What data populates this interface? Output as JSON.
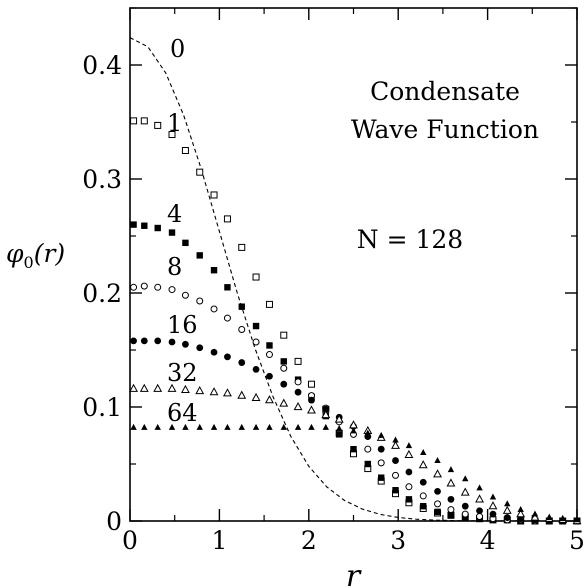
{
  "chart_data": {
    "type": "scatter",
    "xlabel": "r",
    "ylabel": "φ0(r)",
    "xlim": [
      0,
      5
    ],
    "ylim": [
      0,
      0.45
    ],
    "grid": false,
    "x_ticks": [
      0,
      1,
      2,
      3,
      4,
      5
    ],
    "x_tick_labels": [
      "0",
      "1",
      "2",
      "3",
      "4",
      "5"
    ],
    "y_ticks": [
      0,
      0.1,
      0.2,
      0.3,
      0.4
    ],
    "y_tick_labels": [
      "0",
      "0.1",
      "0.2",
      "0.3",
      "0.4"
    ],
    "annotations": [
      {
        "text": "Condensate",
        "position": "upper-right"
      },
      {
        "text": "Wave Function",
        "position": "upper-right"
      },
      {
        "text": "N = 128",
        "position": "right"
      }
    ],
    "series": [
      {
        "name": "0",
        "marker": "dashed-line",
        "x": [
          0,
          0.2,
          0.4,
          0.6,
          0.8,
          1.0,
          1.2,
          1.4,
          1.6,
          1.8,
          2.0,
          2.2,
          2.4,
          2.6,
          2.8,
          3.0,
          3.2,
          3.4,
          3.6,
          3.8,
          4.0,
          4.5,
          5.0
        ],
        "y": [
          0.424,
          0.416,
          0.393,
          0.356,
          0.308,
          0.254,
          0.2,
          0.151,
          0.109,
          0.074,
          0.048,
          0.03,
          0.018,
          0.0104,
          0.0058,
          0.0031,
          0.0016,
          0.0008,
          0.0004,
          0.0002,
          0.0001,
          0.0,
          0.0
        ]
      },
      {
        "name": "1",
        "marker": "open-square",
        "x": [
          0.04,
          0.16,
          0.31,
          0.47,
          0.62,
          0.78,
          0.94,
          1.09,
          1.25,
          1.41,
          1.56,
          1.72,
          1.88,
          2.03,
          2.19,
          2.34,
          2.5,
          2.66,
          2.81,
          2.97,
          3.12,
          3.28,
          3.44,
          3.59,
          3.75,
          3.91,
          4.06,
          4.22,
          4.37,
          4.53,
          4.69,
          4.84,
          5.0
        ],
        "y": [
          0.351,
          0.351,
          0.347,
          0.339,
          0.325,
          0.306,
          0.286,
          0.265,
          0.24,
          0.214,
          0.19,
          0.163,
          0.14,
          0.12,
          0.098,
          0.077,
          0.059,
          0.046,
          0.035,
          0.024,
          0.016,
          0.011,
          0.007,
          0.005,
          0.003,
          0.002,
          0.001,
          0.001,
          0.0,
          0.0,
          0.0,
          0.0,
          0.0
        ]
      },
      {
        "name": "4",
        "marker": "filled-square",
        "x": [
          0.04,
          0.16,
          0.31,
          0.47,
          0.62,
          0.78,
          0.94,
          1.09,
          1.25,
          1.41,
          1.56,
          1.72,
          1.88,
          2.03,
          2.19,
          2.34,
          2.5,
          2.66,
          2.81,
          2.97,
          3.12,
          3.28,
          3.44,
          3.59,
          3.75,
          3.91,
          4.06,
          4.22,
          4.37,
          4.53,
          4.69,
          4.84,
          5.0
        ],
        "y": [
          0.26,
          0.259,
          0.257,
          0.253,
          0.244,
          0.233,
          0.22,
          0.205,
          0.188,
          0.171,
          0.154,
          0.14,
          0.124,
          0.109,
          0.092,
          0.076,
          0.063,
          0.05,
          0.038,
          0.027,
          0.019,
          0.013,
          0.008,
          0.005,
          0.003,
          0.002,
          0.001,
          0.001,
          0.0,
          0.0,
          0.0,
          0.0,
          0.0
        ]
      },
      {
        "name": "8",
        "marker": "open-circle",
        "x": [
          0.04,
          0.16,
          0.31,
          0.47,
          0.62,
          0.78,
          0.94,
          1.09,
          1.25,
          1.41,
          1.56,
          1.72,
          1.88,
          2.03,
          2.19,
          2.34,
          2.5,
          2.66,
          2.81,
          2.97,
          3.12,
          3.28,
          3.44,
          3.59,
          3.75,
          3.91,
          4.06,
          4.22,
          4.37,
          4.53,
          4.69,
          4.84,
          5.0
        ],
        "y": [
          0.205,
          0.206,
          0.205,
          0.203,
          0.198,
          0.193,
          0.186,
          0.178,
          0.168,
          0.157,
          0.146,
          0.134,
          0.122,
          0.11,
          0.099,
          0.087,
          0.076,
          0.063,
          0.051,
          0.04,
          0.03,
          0.022,
          0.015,
          0.01,
          0.006,
          0.004,
          0.002,
          0.001,
          0.001,
          0.0,
          0.0,
          0.0,
          0.0
        ]
      },
      {
        "name": "16",
        "marker": "filled-circle",
        "x": [
          0.04,
          0.16,
          0.31,
          0.47,
          0.62,
          0.78,
          0.94,
          1.09,
          1.25,
          1.41,
          1.56,
          1.72,
          1.88,
          2.03,
          2.19,
          2.34,
          2.5,
          2.66,
          2.81,
          2.97,
          3.12,
          3.28,
          3.44,
          3.59,
          3.75,
          3.91,
          4.06,
          4.22,
          4.37,
          4.53,
          4.69,
          4.84,
          5.0
        ],
        "y": [
          0.158,
          0.158,
          0.158,
          0.157,
          0.155,
          0.152,
          0.148,
          0.144,
          0.139,
          0.133,
          0.127,
          0.12,
          0.113,
          0.106,
          0.098,
          0.091,
          0.083,
          0.074,
          0.063,
          0.053,
          0.043,
          0.034,
          0.026,
          0.019,
          0.013,
          0.009,
          0.006,
          0.003,
          0.002,
          0.001,
          0.0,
          0.0,
          0.0
        ]
      },
      {
        "name": "32",
        "marker": "open-triangle",
        "x": [
          0.04,
          0.16,
          0.31,
          0.47,
          0.62,
          0.78,
          0.94,
          1.09,
          1.25,
          1.41,
          1.56,
          1.72,
          1.88,
          2.03,
          2.19,
          2.34,
          2.5,
          2.66,
          2.81,
          2.97,
          3.12,
          3.28,
          3.44,
          3.59,
          3.75,
          3.91,
          4.06,
          4.22,
          4.37,
          4.53,
          4.69,
          4.84,
          5.0
        ],
        "y": [
          0.116,
          0.116,
          0.116,
          0.116,
          0.115,
          0.114,
          0.113,
          0.112,
          0.11,
          0.108,
          0.106,
          0.103,
          0.1,
          0.097,
          0.093,
          0.089,
          0.084,
          0.079,
          0.073,
          0.066,
          0.058,
          0.049,
          0.041,
          0.033,
          0.025,
          0.019,
          0.013,
          0.009,
          0.006,
          0.003,
          0.002,
          0.001,
          0.0
        ]
      },
      {
        "name": "64",
        "marker": "filled-triangle",
        "x": [
          0.04,
          0.16,
          0.31,
          0.47,
          0.62,
          0.78,
          0.94,
          1.09,
          1.25,
          1.41,
          1.56,
          1.72,
          1.88,
          2.03,
          2.19,
          2.34,
          2.5,
          2.66,
          2.81,
          2.97,
          3.12,
          3.28,
          3.44,
          3.59,
          3.75,
          3.91,
          4.06,
          4.22,
          4.37,
          4.53,
          4.69,
          4.84,
          5.0
        ],
        "y": [
          0.082,
          0.082,
          0.082,
          0.082,
          0.082,
          0.082,
          0.082,
          0.082,
          0.082,
          0.082,
          0.082,
          0.082,
          0.082,
          0.082,
          0.082,
          0.081,
          0.079,
          0.077,
          0.075,
          0.071,
          0.066,
          0.06,
          0.053,
          0.045,
          0.037,
          0.029,
          0.021,
          0.015,
          0.01,
          0.006,
          0.003,
          0.002,
          0.001
        ]
      }
    ]
  }
}
